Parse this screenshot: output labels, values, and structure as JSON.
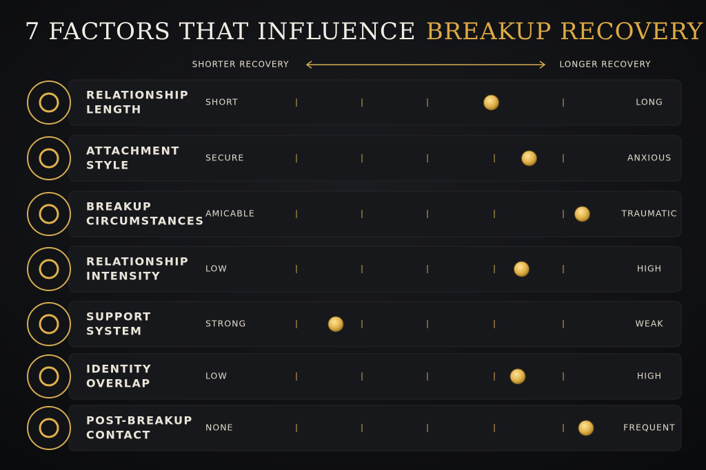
{
  "title": {
    "main": "7 FACTORS THAT INFLUENCE",
    "highlight": "BREAKUP RECOVERY"
  },
  "scale": {
    "left": "SHORTER RECOVERY",
    "right": "LONGER RECOVERY"
  },
  "factors": [
    {
      "label_lines": [
        "RELATIONSHIP",
        "LENGTH"
      ],
      "low": "SHORT",
      "high": "LONG",
      "position": 65
    },
    {
      "label_lines": [
        "ATTACHMENT",
        "STYLE"
      ],
      "low": "SECURE",
      "high": "ANXIOUS",
      "position": 75
    },
    {
      "label_lines": [
        "BREAKUP",
        "CIRCUMSTANCES"
      ],
      "low": "AMICABLE",
      "high": "TRAUMATIC",
      "position": 89
    },
    {
      "label_lines": [
        "RELATIONSHIP",
        "INTENSITY"
      ],
      "low": "LOW",
      "high": "HIGH",
      "position": 73
    },
    {
      "label_lines": [
        "SUPPORT",
        "SYSTEM"
      ],
      "low": "STRONG",
      "high": "WEAK",
      "position": 24
    },
    {
      "label_lines": [
        "IDENTITY",
        "OVERLAP"
      ],
      "low": "LOW",
      "high": "HIGH",
      "position": 72
    },
    {
      "label_lines": [
        "POST-BREAKUP",
        "CONTACT"
      ],
      "low": "NONE",
      "high": "FREQUENT",
      "position": 90
    }
  ]
}
